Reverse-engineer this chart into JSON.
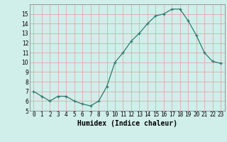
{
  "x": [
    0,
    1,
    2,
    3,
    4,
    5,
    6,
    7,
    8,
    9,
    10,
    11,
    12,
    13,
    14,
    15,
    16,
    17,
    18,
    19,
    20,
    21,
    22,
    23
  ],
  "y": [
    7.0,
    6.5,
    6.0,
    6.5,
    6.5,
    6.0,
    5.7,
    5.5,
    6.0,
    7.5,
    10.0,
    11.0,
    12.2,
    13.0,
    14.0,
    14.8,
    15.0,
    15.5,
    15.5,
    14.3,
    12.8,
    11.0,
    10.1,
    9.9
  ],
  "xlabel": "Humidex (Indice chaleur)",
  "ylim": [
    5,
    16
  ],
  "xlim": [
    -0.5,
    23.5
  ],
  "yticks": [
    5,
    6,
    7,
    8,
    9,
    10,
    11,
    12,
    13,
    14,
    15
  ],
  "xticks": [
    0,
    1,
    2,
    3,
    4,
    5,
    6,
    7,
    8,
    9,
    10,
    11,
    12,
    13,
    14,
    15,
    16,
    17,
    18,
    19,
    20,
    21,
    22,
    23
  ],
  "line_color": "#2d7a6e",
  "marker_color": "#2d7a6e",
  "bg_color": "#d0eeea",
  "grid_color": "#e0a0a0",
  "xlabel_fontsize": 7,
  "tick_fontsize": 5.5,
  "title": ""
}
